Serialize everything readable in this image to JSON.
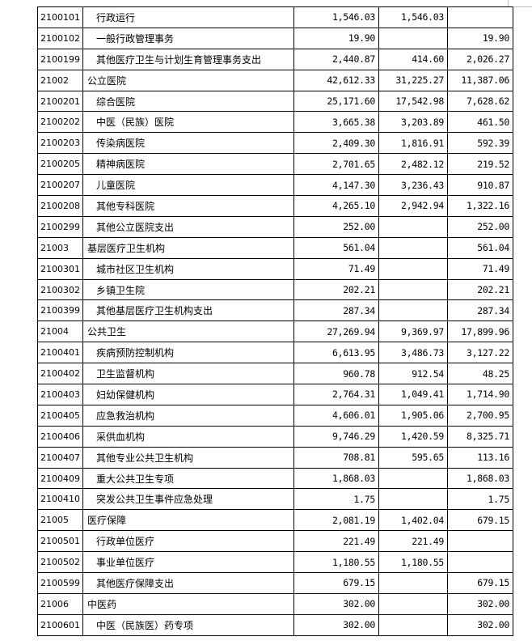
{
  "table": {
    "rows": [
      {
        "code": "2100101",
        "name": "行政运行",
        "level": 2,
        "total": "1,546.03",
        "basic": "1,546.03",
        "project": ""
      },
      {
        "code": "2100102",
        "name": "一般行政管理事务",
        "level": 2,
        "total": "19.90",
        "basic": "",
        "project": "19.90"
      },
      {
        "code": "2100199",
        "name": "其他医疗卫生与计划生育管理事务支出",
        "level": 2,
        "total": "2,440.87",
        "basic": "414.60",
        "project": "2,026.27"
      },
      {
        "code": "21002",
        "name": "公立医院",
        "level": 1,
        "total": "42,612.33",
        "basic": "31,225.27",
        "project": "11,387.06"
      },
      {
        "code": "2100201",
        "name": "综合医院",
        "level": 2,
        "total": "25,171.60",
        "basic": "17,542.98",
        "project": "7,628.62"
      },
      {
        "code": "2100202",
        "name": "中医（民族）医院",
        "level": 2,
        "total": "3,665.38",
        "basic": "3,203.89",
        "project": "461.50"
      },
      {
        "code": "2100203",
        "name": "传染病医院",
        "level": 2,
        "total": "2,409.30",
        "basic": "1,816.91",
        "project": "592.39"
      },
      {
        "code": "2100205",
        "name": "精神病医院",
        "level": 2,
        "total": "2,701.65",
        "basic": "2,482.12",
        "project": "219.52"
      },
      {
        "code": "2100207",
        "name": "儿童医院",
        "level": 2,
        "total": "4,147.30",
        "basic": "3,236.43",
        "project": "910.87"
      },
      {
        "code": "2100208",
        "name": "其他专科医院",
        "level": 2,
        "total": "4,265.10",
        "basic": "2,942.94",
        "project": "1,322.16"
      },
      {
        "code": "2100299",
        "name": "其他公立医院支出",
        "level": 2,
        "total": "252.00",
        "basic": "",
        "project": "252.00"
      },
      {
        "code": "21003",
        "name": "基层医疗卫生机构",
        "level": 1,
        "total": "561.04",
        "basic": "",
        "project": "561.04"
      },
      {
        "code": "2100301",
        "name": "城市社区卫生机构",
        "level": 2,
        "total": "71.49",
        "basic": "",
        "project": "71.49"
      },
      {
        "code": "2100302",
        "name": "乡镇卫生院",
        "level": 2,
        "total": "202.21",
        "basic": "",
        "project": "202.21"
      },
      {
        "code": "2100399",
        "name": "其他基层医疗卫生机构支出",
        "level": 2,
        "total": "287.34",
        "basic": "",
        "project": "287.34"
      },
      {
        "code": "21004",
        "name": "公共卫生",
        "level": 1,
        "total": "27,269.94",
        "basic": "9,369.97",
        "project": "17,899.96"
      },
      {
        "code": "2100401",
        "name": "疾病预防控制机构",
        "level": 2,
        "total": "6,613.95",
        "basic": "3,486.73",
        "project": "3,127.22"
      },
      {
        "code": "2100402",
        "name": "卫生监督机构",
        "level": 2,
        "total": "960.78",
        "basic": "912.54",
        "project": "48.25"
      },
      {
        "code": "2100403",
        "name": "妇幼保健机构",
        "level": 2,
        "total": "2,764.31",
        "basic": "1,049.41",
        "project": "1,714.90"
      },
      {
        "code": "2100405",
        "name": "应急救治机构",
        "level": 2,
        "total": "4,606.01",
        "basic": "1,905.06",
        "project": "2,700.95"
      },
      {
        "code": "2100406",
        "name": "采供血机构",
        "level": 2,
        "total": "9,746.29",
        "basic": "1,420.59",
        "project": "8,325.71"
      },
      {
        "code": "2100407",
        "name": "其他专业公共卫生机构",
        "level": 2,
        "total": "708.81",
        "basic": "595.65",
        "project": "113.16"
      },
      {
        "code": "2100409",
        "name": "重大公共卫生专项",
        "level": 2,
        "total": "1,868.03",
        "basic": "",
        "project": "1,868.03"
      },
      {
        "code": "2100410",
        "name": "突发公共卫生事件应急处理",
        "level": 2,
        "total": "1.75",
        "basic": "",
        "project": "1.75"
      },
      {
        "code": "21005",
        "name": "医疗保障",
        "level": 1,
        "total": "2,081.19",
        "basic": "1,402.04",
        "project": "679.15"
      },
      {
        "code": "2100501",
        "name": "行政单位医疗",
        "level": 2,
        "total": "221.49",
        "basic": "221.49",
        "project": ""
      },
      {
        "code": "2100502",
        "name": "事业单位医疗",
        "level": 2,
        "total": "1,180.55",
        "basic": "1,180.55",
        "project": ""
      },
      {
        "code": "2100599",
        "name": "其他医疗保障支出",
        "level": 2,
        "total": "679.15",
        "basic": "",
        "project": "679.15"
      },
      {
        "code": "21006",
        "name": "中医药",
        "level": 1,
        "total": "302.00",
        "basic": "",
        "project": "302.00"
      },
      {
        "code": "2100601",
        "name": "中医（民族医）药专项",
        "level": 2,
        "total": "302.00",
        "basic": "",
        "project": "302.00"
      }
    ]
  }
}
